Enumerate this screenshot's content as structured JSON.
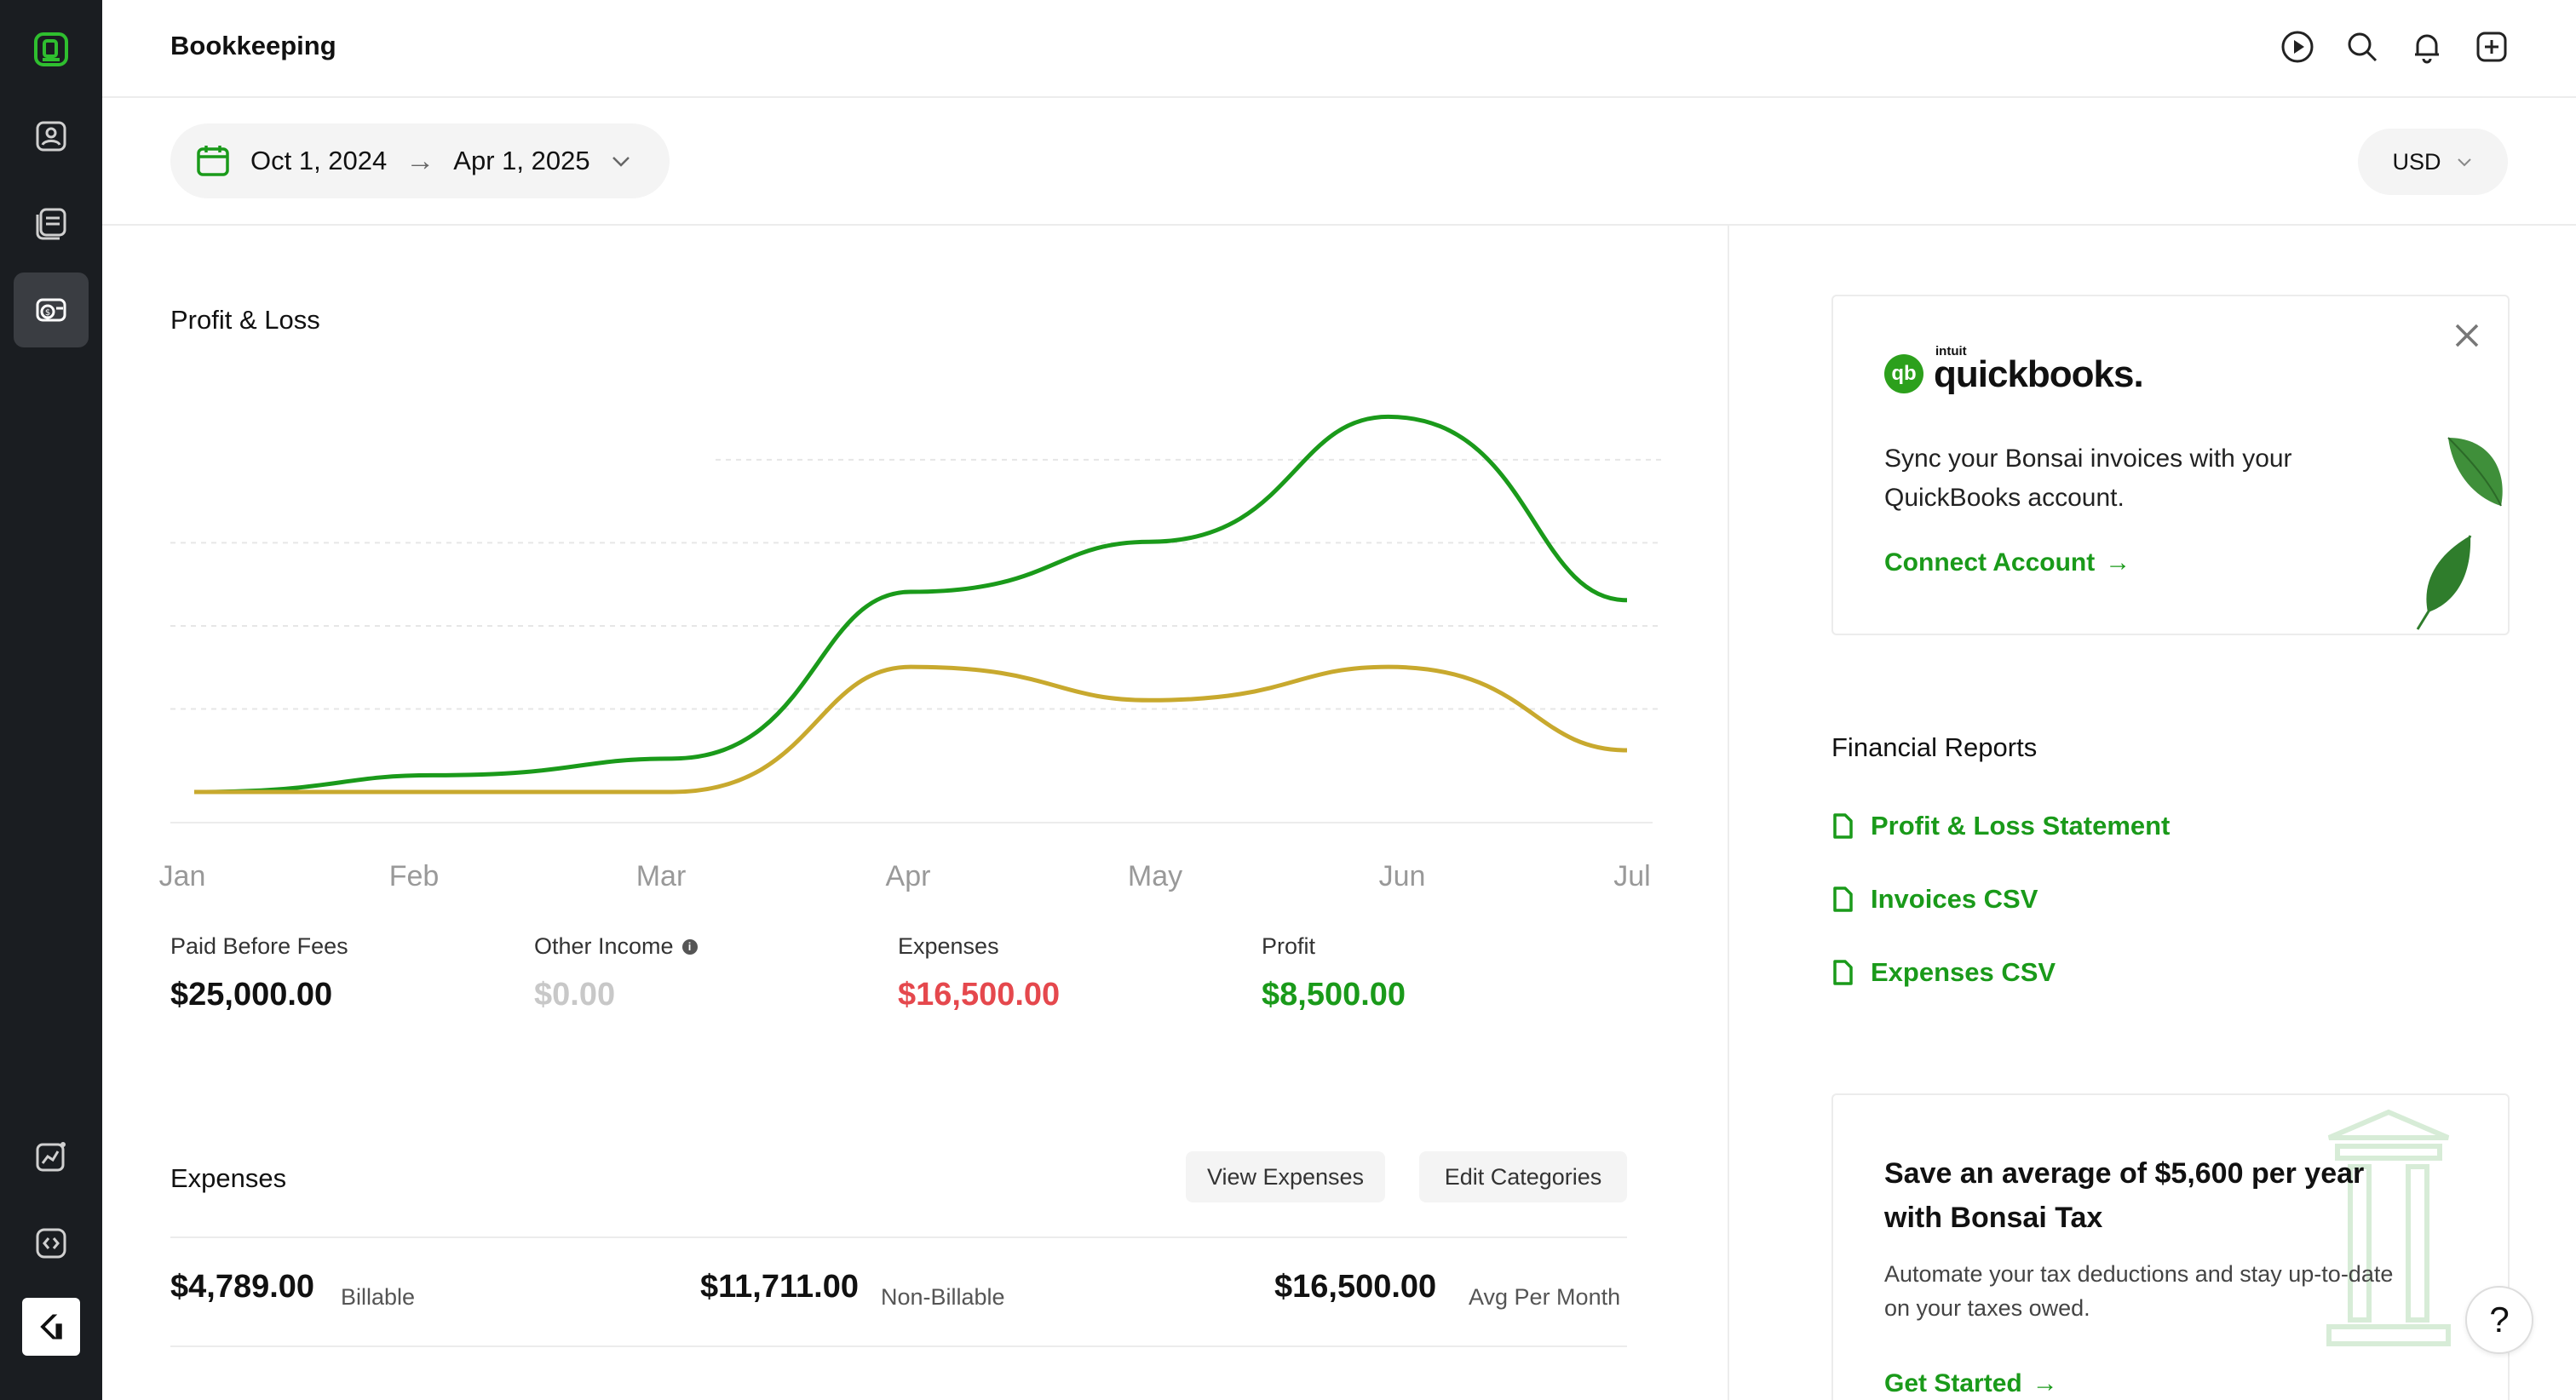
{
  "header": {
    "title": "Bookkeeping"
  },
  "date_range": {
    "start": "Oct 1, 2024",
    "arrow": "→",
    "end": "Apr 1, 2025"
  },
  "currency": {
    "selected": "USD"
  },
  "profit_loss": {
    "title": "Profit & Loss",
    "stats": [
      {
        "label": "Paid Before Fees",
        "value": "$25,000.00",
        "color": "#111111"
      },
      {
        "label": "Other Income",
        "value": "$0.00",
        "color": "#c8c8c8"
      },
      {
        "label": "Expenses",
        "value": "$16,500.00",
        "color": "#e5484d"
      },
      {
        "label": "Profit",
        "value": "$8,500.00",
        "color": "#1a9a1a"
      }
    ]
  },
  "chart_data": {
    "type": "line",
    "x": [
      "Jan",
      "Feb",
      "Mar",
      "Apr",
      "May",
      "Jun",
      "Jul"
    ],
    "series": [
      {
        "values": [
          0,
          1000,
          2000,
          12000,
          15000,
          22500,
          11500
        ],
        "color": "#1a9a1a"
      },
      {
        "values": [
          0,
          0,
          0,
          7500,
          5500,
          7500,
          2500
        ],
        "color": "#c8a92e"
      }
    ],
    "ylim": [
      0,
      24000
    ],
    "grid": true,
    "legend": "none"
  },
  "expenses": {
    "title": "Expenses",
    "view_button": "View Expenses",
    "edit_button": "Edit Categories",
    "billable_value": "$4,789.00",
    "billable_label": "Billable",
    "nonbillable_value": "$11,711.00",
    "nonbillable_label": "Non-Billable",
    "avg_value": "$16,500.00",
    "avg_label": "Avg Per Month"
  },
  "quickbooks": {
    "logo_badge": "qb",
    "intuit": "intuit",
    "wordmark": "quickbooks.",
    "text": "Sync your Bonsai invoices with your QuickBooks account.",
    "link": "Connect Account",
    "link_arrow": "→"
  },
  "reports": {
    "title": "Financial Reports",
    "items": [
      "Profit & Loss Statement",
      "Invoices CSV",
      "Expenses CSV"
    ]
  },
  "tax": {
    "title": "Save an average of $5,600 per year with Bonsai Tax",
    "text": "Automate your tax deductions and stay up-to-date on your taxes owed.",
    "link": "Get Started",
    "link_arrow": "→"
  },
  "help": {
    "label": "?"
  },
  "colors": {
    "accent_green": "#1a9a1a",
    "expense_red": "#e5484d",
    "sidebar_bg": "#1a1d21",
    "series_gold": "#c8a92e"
  },
  "icons": {
    "sidebar": [
      "bonsai-logo-icon",
      "contacts-icon",
      "documents-icon",
      "bookkeeping-icon",
      "analytics-icon",
      "integrations-icon",
      "brand-k-icon"
    ],
    "top": [
      "play-icon",
      "search-icon",
      "bell-icon",
      "plus-icon"
    ]
  }
}
